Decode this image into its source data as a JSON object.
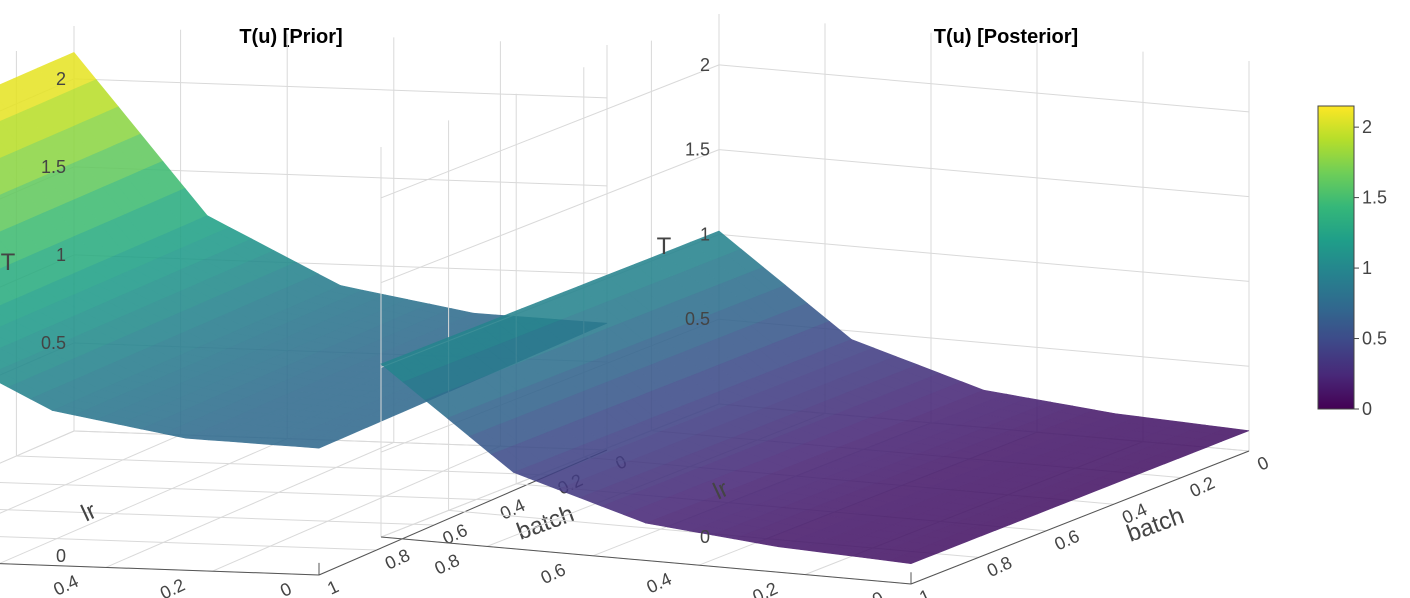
{
  "chart_data": [
    {
      "type": "surface",
      "title": "T(u) [Prior]",
      "xlabel": "batch",
      "ylabel": "lr",
      "zlabel": "T",
      "xlim": [
        0,
        1
      ],
      "ylim": [
        0,
        1
      ],
      "zlim": [
        0,
        2.3
      ],
      "xticks": [
        "0",
        "0.2",
        "0.4",
        "0.6",
        "0.8",
        "1"
      ],
      "yticks": [
        "0",
        "0.2",
        "0.4",
        "0.6",
        "0.8"
      ],
      "zticks": [
        "0",
        "0.5",
        "1",
        "1.5",
        "2"
      ],
      "grid": true,
      "x": [
        0,
        0.25,
        0.5,
        0.75,
        1
      ],
      "y": [
        0,
        0.25,
        0.5,
        0.75,
        1
      ],
      "z": [
        [
          0.72,
          0.72,
          0.72,
          0.72,
          0.72
        ],
        [
          0.75,
          0.75,
          0.75,
          0.75,
          0.75
        ],
        [
          0.88,
          0.88,
          0.88,
          0.88,
          0.88
        ],
        [
          1.25,
          1.25,
          1.25,
          1.25,
          1.25
        ],
        [
          2.15,
          2.15,
          2.15,
          2.15,
          2.15
        ]
      ]
    },
    {
      "type": "surface",
      "title": "T(u) [Posterior]",
      "xlabel": "batch",
      "ylabel": "lr",
      "zlabel": "T",
      "xlim": [
        0,
        1
      ],
      "ylim": [
        0,
        1
      ],
      "zlim": [
        0,
        2.3
      ],
      "xticks": [
        "0",
        "0.2",
        "0.4",
        "0.6",
        "0.8",
        "1"
      ],
      "yticks": [
        "0",
        "0.2",
        "0.4",
        "0.6",
        "0.8"
      ],
      "zticks": [
        "0",
        "0.5",
        "1",
        "1.5",
        "2"
      ],
      "grid": true,
      "x": [
        0,
        0.25,
        0.5,
        0.75,
        1
      ],
      "y": [
        0,
        0.25,
        0.5,
        0.75,
        1
      ],
      "z": [
        [
          0.12,
          0.12,
          0.12,
          0.12,
          0.12
        ],
        [
          0.15,
          0.15,
          0.15,
          0.15,
          0.15
        ],
        [
          0.22,
          0.22,
          0.22,
          0.22,
          0.22
        ],
        [
          0.45,
          0.45,
          0.45,
          0.45,
          0.45
        ],
        [
          1.02,
          1.02,
          1.02,
          1.02,
          1.02
        ]
      ]
    }
  ],
  "colorbar": {
    "colorscale": "viridis",
    "range": [
      0,
      2.15
    ],
    "ticks": [
      "0",
      "0.5",
      "1",
      "1.5",
      "2"
    ],
    "colors": [
      "#440154",
      "#482878",
      "#3e4989",
      "#31688e",
      "#26828e",
      "#1f9e89",
      "#35b779",
      "#6ece58",
      "#b5de2b",
      "#fde725"
    ]
  }
}
